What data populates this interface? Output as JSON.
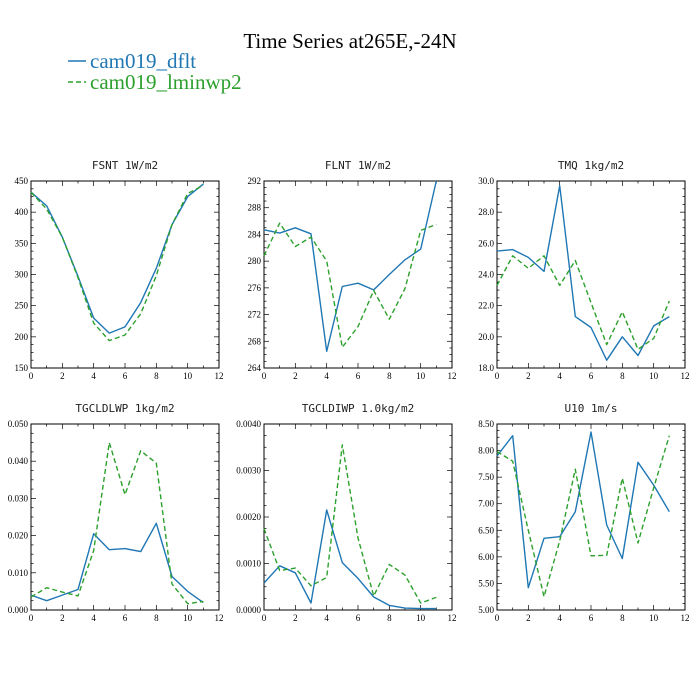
{
  "title": "Time Series at265E,-24N",
  "colors": {
    "dflt": "#1f77b4",
    "lminwp2": "#2ca02c"
  },
  "legend": [
    {
      "label": "cam019_dflt",
      "color": "#1f77b4",
      "style": "solid"
    },
    {
      "label": "cam019_lminwp2",
      "color": "#2ca02c",
      "style": "dashed"
    }
  ],
  "chart_data": [
    {
      "type": "line",
      "title": "FSNT   1W/m2",
      "x": [
        0,
        1,
        2,
        3,
        4,
        5,
        6,
        7,
        8,
        9,
        10,
        11
      ],
      "xlim": [
        0,
        12
      ],
      "xticks": [
        0,
        2,
        4,
        6,
        8,
        10,
        12
      ],
      "xtick_labels": [
        "0",
        "2",
        "4",
        "6",
        "8",
        "10",
        "12"
      ],
      "ylim": [
        150,
        450
      ],
      "yticks": [
        150,
        200,
        250,
        300,
        350,
        400,
        450
      ],
      "ytick_labels": [
        "150",
        "200",
        "250",
        "300",
        "350",
        "400",
        "450"
      ],
      "series": [
        {
          "name": "cam019_dflt",
          "values": [
            432,
            410,
            360,
            297,
            230,
            206,
            216,
            255,
            310,
            380,
            425,
            445
          ]
        },
        {
          "name": "cam019_lminwp2",
          "values": [
            432,
            405,
            360,
            295,
            222,
            194,
            203,
            237,
            298,
            380,
            430,
            443
          ]
        }
      ]
    },
    {
      "type": "line",
      "title": "FLNT   1W/m2",
      "x": [
        0,
        1,
        2,
        3,
        4,
        5,
        6,
        7,
        8,
        9,
        10,
        11
      ],
      "xlim": [
        0,
        12
      ],
      "xticks": [
        0,
        2,
        4,
        6,
        8,
        10,
        12
      ],
      "xtick_labels": [
        "0",
        "2",
        "4",
        "6",
        "8",
        "10",
        "12"
      ],
      "ylim": [
        264,
        292
      ],
      "yticks": [
        264,
        268,
        272,
        276,
        280,
        284,
        288,
        292
      ],
      "ytick_labels": [
        "264",
        "268",
        "272",
        "276",
        "280",
        "284",
        "288",
        "292"
      ],
      "series": [
        {
          "name": "cam019_dflt",
          "values": [
            284.7,
            284.2,
            285.0,
            284.1,
            266.5,
            276.2,
            276.7,
            275.7,
            278.0,
            280.2,
            281.8,
            292.0
          ]
        },
        {
          "name": "cam019_lminwp2",
          "values": [
            280.8,
            285.7,
            282.2,
            283.6,
            280.0,
            267.1,
            270.2,
            275.6,
            271.3,
            275.9,
            284.6,
            285.5
          ]
        }
      ]
    },
    {
      "type": "line",
      "title": "TMQ   1kg/m2",
      "x": [
        0,
        1,
        2,
        3,
        4,
        5,
        6,
        7,
        8,
        9,
        10,
        11
      ],
      "xlim": [
        0,
        12
      ],
      "xticks": [
        0,
        2,
        4,
        6,
        8,
        10,
        12
      ],
      "xtick_labels": [
        "0",
        "2",
        "4",
        "6",
        "8",
        "10",
        "12"
      ],
      "ylim": [
        18.0,
        30.0
      ],
      "yticks": [
        18,
        20,
        22,
        24,
        26,
        28,
        30
      ],
      "ytick_labels": [
        "18.0",
        "20.0",
        "22.0",
        "24.0",
        "26.0",
        "28.0",
        "30.0"
      ],
      "series": [
        {
          "name": "cam019_dflt",
          "values": [
            25.5,
            25.6,
            25.1,
            24.2,
            29.7,
            21.3,
            20.6,
            18.5,
            20.0,
            18.8,
            20.7,
            21.3
          ]
        },
        {
          "name": "cam019_lminwp2",
          "values": [
            23.3,
            25.2,
            24.4,
            25.2,
            23.3,
            24.9,
            22.2,
            19.5,
            21.6,
            19.2,
            19.9,
            22.3
          ]
        }
      ]
    },
    {
      "type": "line",
      "title": "TGCLDLWP   1kg/m2",
      "x": [
        0,
        1,
        2,
        3,
        4,
        5,
        6,
        7,
        8,
        9,
        10,
        11
      ],
      "xlim": [
        0,
        12
      ],
      "xticks": [
        0,
        2,
        4,
        6,
        8,
        10,
        12
      ],
      "xtick_labels": [
        "0",
        "2",
        "4",
        "6",
        "8",
        "10",
        "12"
      ],
      "ylim": [
        0.0,
        0.05
      ],
      "yticks": [
        0,
        0.01,
        0.02,
        0.03,
        0.04,
        0.05
      ],
      "ytick_labels": [
        "0.000",
        "0.010",
        "0.020",
        "0.030",
        "0.040",
        "0.050"
      ],
      "series": [
        {
          "name": "cam019_dflt",
          "values": [
            0.004,
            0.0025,
            0.004,
            0.0055,
            0.0205,
            0.0162,
            0.0165,
            0.0157,
            0.0233,
            0.009,
            0.005,
            0.002
          ]
        },
        {
          "name": "cam019_lminwp2",
          "values": [
            0.0035,
            0.006,
            0.0048,
            0.0038,
            0.016,
            0.045,
            0.031,
            0.0428,
            0.0395,
            0.007,
            0.0017,
            0.0023
          ]
        }
      ]
    },
    {
      "type": "line",
      "title": "TGCLDIWP   1.0kg/m2",
      "x": [
        0,
        1,
        2,
        3,
        4,
        5,
        6,
        7,
        8,
        9,
        10,
        11
      ],
      "xlim": [
        0,
        12
      ],
      "xticks": [
        0,
        2,
        4,
        6,
        8,
        10,
        12
      ],
      "xtick_labels": [
        "0",
        "2",
        "4",
        "6",
        "8",
        "10",
        "12"
      ],
      "ylim": [
        0.0,
        0.004
      ],
      "yticks": [
        0,
        0.001,
        0.002,
        0.003,
        0.004
      ],
      "ytick_labels": [
        "0.0000",
        "0.0010",
        "0.0020",
        "0.0030",
        "0.0040"
      ],
      "series": [
        {
          "name": "cam019_dflt",
          "values": [
            0.00058,
            0.00095,
            0.0008,
            0.00015,
            0.00215,
            0.00102,
            0.00068,
            0.00028,
            0.0001,
            4e-05,
            3e-05,
            3e-05
          ]
        },
        {
          "name": "cam019_lminwp2",
          "values": [
            0.00175,
            0.00085,
            0.0009,
            0.00052,
            0.0007,
            0.00355,
            0.00155,
            0.0003,
            0.00098,
            0.00075,
            0.00015,
            0.00027
          ]
        }
      ]
    },
    {
      "type": "line",
      "title": "U10   1m/s",
      "x": [
        0,
        1,
        2,
        3,
        4,
        5,
        6,
        7,
        8,
        9,
        10,
        11
      ],
      "xlim": [
        0,
        12
      ],
      "xticks": [
        0,
        2,
        4,
        6,
        8,
        10,
        12
      ],
      "xtick_labels": [
        "0",
        "2",
        "4",
        "6",
        "8",
        "10",
        "12"
      ],
      "ylim": [
        5.0,
        8.5
      ],
      "yticks": [
        5,
        5.5,
        6,
        6.5,
        7,
        7.5,
        8,
        8.5
      ],
      "ytick_labels": [
        "5.00",
        "5.50",
        "6.00",
        "6.50",
        "7.00",
        "7.50",
        "8.00",
        "8.50"
      ],
      "series": [
        {
          "name": "cam019_dflt",
          "values": [
            7.9,
            8.28,
            5.42,
            6.35,
            6.38,
            6.85,
            8.35,
            6.6,
            5.97,
            7.78,
            7.35,
            6.85
          ]
        },
        {
          "name": "cam019_lminwp2",
          "values": [
            7.98,
            7.8,
            6.5,
            5.25,
            6.3,
            7.65,
            6.02,
            6.03,
            7.48,
            6.26,
            7.3,
            8.28
          ]
        }
      ]
    }
  ]
}
